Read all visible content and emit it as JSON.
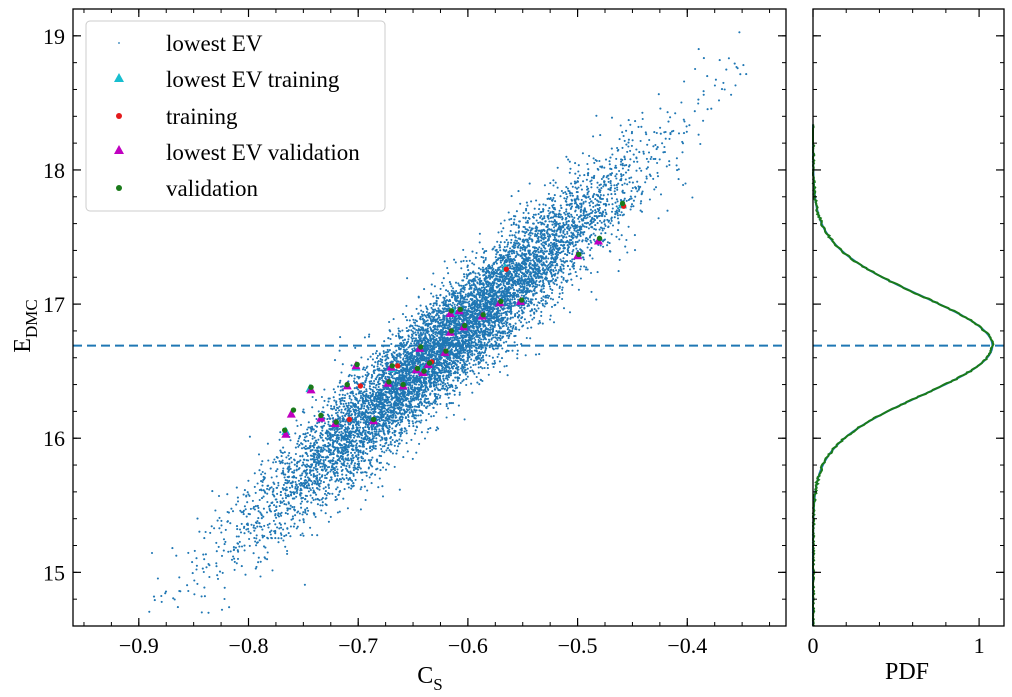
{
  "chart_data": [
    {
      "type": "scatter",
      "xlabel": "C",
      "xlabel_sub": "S",
      "ylabel": "E",
      "ylabel_sub": "DMC",
      "xlim": [
        -0.96,
        -0.31
      ],
      "ylim": [
        14.6,
        19.2
      ],
      "x_ticks": [
        -0.9,
        -0.8,
        -0.7,
        -0.6,
        -0.5,
        -0.4
      ],
      "x_tick_labels": [
        "−0.9",
        "−0.8",
        "−0.7",
        "−0.6",
        "−0.5",
        "−0.4"
      ],
      "y_ticks": [
        15,
        16,
        17,
        18,
        19
      ],
      "y_tick_labels": [
        "15",
        "16",
        "17",
        "18",
        "19"
      ],
      "hline": 16.69,
      "grid": false,
      "legend_placement": "top-left",
      "cloud": {
        "name": "lowest EV",
        "color": "#1f77b4",
        "center": [
          -0.62,
          16.7
        ],
        "x_range": [
          -0.93,
          -0.36
        ],
        "y_range": [
          14.8,
          18.3
        ],
        "n_points": 9000
      },
      "series": [
        {
          "name": "lowest EV training",
          "marker": "triangle",
          "color": "#17becf",
          "points": [
            [
              -0.766,
              16.05
            ],
            [
              -0.744,
              16.37
            ],
            [
              -0.702,
              16.53
            ],
            [
              -0.669,
              16.52
            ],
            [
              -0.642,
              16.51
            ],
            [
              -0.613,
              16.94
            ],
            [
              -0.566,
              17.27
            ],
            [
              -0.459,
              17.74
            ]
          ]
        },
        {
          "name": "training",
          "marker": "dot",
          "color": "#e41a1c",
          "points": [
            [
              -0.708,
              16.14
            ],
            [
              -0.698,
              16.39
            ],
            [
              -0.664,
              16.54
            ],
            [
              -0.633,
              16.57
            ],
            [
              -0.565,
              17.26
            ],
            [
              -0.458,
              17.73
            ]
          ]
        },
        {
          "name": "lowest EV validation",
          "marker": "triangle",
          "color": "#c000c0",
          "points": [
            [
              -0.766,
              16.03
            ],
            [
              -0.761,
              16.18
            ],
            [
              -0.743,
              16.36
            ],
            [
              -0.734,
              16.15
            ],
            [
              -0.721,
              16.11
            ],
            [
              -0.71,
              16.39
            ],
            [
              -0.702,
              16.54
            ],
            [
              -0.686,
              16.13
            ],
            [
              -0.673,
              16.41
            ],
            [
              -0.67,
              16.53
            ],
            [
              -0.659,
              16.39
            ],
            [
              -0.647,
              16.51
            ],
            [
              -0.644,
              16.67
            ],
            [
              -0.641,
              16.49
            ],
            [
              -0.636,
              16.55
            ],
            [
              -0.621,
              16.64
            ],
            [
              -0.616,
              16.93
            ],
            [
              -0.616,
              16.79
            ],
            [
              -0.608,
              16.95
            ],
            [
              -0.604,
              16.83
            ],
            [
              -0.587,
              16.91
            ],
            [
              -0.571,
              17.01
            ],
            [
              -0.552,
              17.02
            ],
            [
              -0.5,
              17.36
            ],
            [
              -0.481,
              17.47
            ]
          ]
        },
        {
          "name": "validation",
          "marker": "dot",
          "color": "#1a7a1a",
          "points": [
            [
              -0.767,
              16.06
            ],
            [
              -0.759,
              16.21
            ],
            [
              -0.743,
              16.38
            ],
            [
              -0.734,
              16.17
            ],
            [
              -0.72,
              16.12
            ],
            [
              -0.71,
              16.4
            ],
            [
              -0.701,
              16.55
            ],
            [
              -0.686,
              16.14
            ],
            [
              -0.672,
              16.42
            ],
            [
              -0.669,
              16.54
            ],
            [
              -0.659,
              16.4
            ],
            [
              -0.646,
              16.52
            ],
            [
              -0.643,
              16.68
            ],
            [
              -0.64,
              16.5
            ],
            [
              -0.635,
              16.56
            ],
            [
              -0.62,
              16.65
            ],
            [
              -0.615,
              16.95
            ],
            [
              -0.615,
              16.8
            ],
            [
              -0.607,
              16.96
            ],
            [
              -0.603,
              16.84
            ],
            [
              -0.586,
              16.92
            ],
            [
              -0.57,
              17.02
            ],
            [
              -0.551,
              17.03
            ],
            [
              -0.499,
              17.37
            ],
            [
              -0.48,
              17.49
            ],
            [
              -0.459,
              17.75
            ]
          ]
        }
      ]
    },
    {
      "type": "line",
      "xlabel": "PDF",
      "xlim": [
        0,
        1.15
      ],
      "ylim": [
        14.6,
        19.2
      ],
      "x_ticks": [
        0,
        1
      ],
      "x_tick_labels": [
        "0",
        "1"
      ],
      "hline": 16.69,
      "distribution": {
        "mean": 16.69,
        "sd": 0.37,
        "peak": 1.08
      },
      "series": [
        {
          "name": "lowest EV",
          "color": "#1f77b4"
        },
        {
          "name": "validation",
          "color": "#1a7a1a"
        }
      ]
    }
  ]
}
